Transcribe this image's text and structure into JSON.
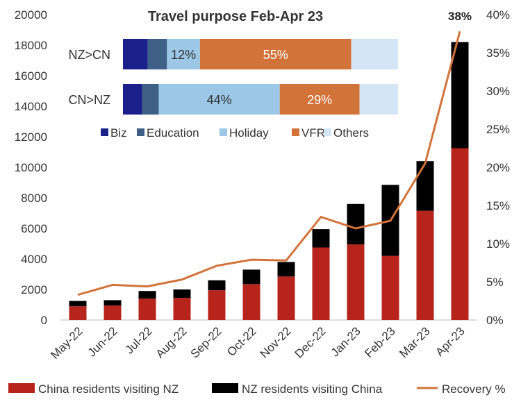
{
  "chart_data": [
    {
      "type": "bar",
      "stacked": true,
      "categories": [
        "May-22",
        "Jun-22",
        "Jul-22",
        "Aug-22",
        "Sep-22",
        "Oct-22",
        "Nov-22",
        "Dec-22",
        "Jan-23",
        "Feb-23",
        "Mar-23",
        "Apr-23"
      ],
      "series": [
        {
          "name": "China residents visiting NZ",
          "axis": "left",
          "color": "#b7241b",
          "values": [
            900,
            950,
            1400,
            1450,
            1950,
            2350,
            2850,
            4750,
            4950,
            4200,
            7150,
            11250
          ]
        },
        {
          "name": "NZ residents visiting China",
          "axis": "left",
          "color": "#000000",
          "values": [
            350,
            350,
            500,
            550,
            650,
            950,
            950,
            1200,
            2650,
            4650,
            3250,
            6950
          ]
        },
        {
          "name": "Recovery %",
          "type": "line",
          "axis": "right",
          "color": "#d2733a",
          "values": [
            3.3,
            4.6,
            4.4,
            5.3,
            7.1,
            7.9,
            7.8,
            13.5,
            12.0,
            13.0,
            20.5,
            37.8
          ]
        }
      ],
      "ylim_left": [
        0,
        20000
      ],
      "yticks_left": [
        "0",
        "2000",
        "4000",
        "6000",
        "8000",
        "10000",
        "12000",
        "14000",
        "16000",
        "18000",
        "20000"
      ],
      "ylim_right": [
        0,
        40
      ],
      "yticks_right": [
        "0%",
        "5%",
        "10%",
        "15%",
        "20%",
        "25%",
        "30%",
        "35%",
        "40%"
      ],
      "annotation": "38%",
      "legend_position": "bottom",
      "grid": false
    },
    {
      "type": "bar",
      "orientation": "horizontal",
      "stacked": true,
      "percent": true,
      "title": "Travel purpose Feb-Apr 23",
      "categories": [
        "NZ>CN",
        "CN>NZ"
      ],
      "series": [
        {
          "name": "Biz",
          "color": "#1a1f8a",
          "values": [
            9,
            7
          ],
          "labels": [
            "",
            ""
          ]
        },
        {
          "name": "Education",
          "color": "#3e5f86",
          "values": [
            7,
            6
          ],
          "labels": [
            "",
            ""
          ]
        },
        {
          "name": "Holiday",
          "color": "#9cc7e7",
          "values": [
            12,
            44
          ],
          "labels": [
            "12%",
            "44%"
          ]
        },
        {
          "name": "VFR",
          "color": "#d2733a",
          "values": [
            55,
            29
          ],
          "labels": [
            "55%",
            "29%"
          ]
        },
        {
          "name": "Others",
          "color": "#d4e6f5",
          "values": [
            17,
            14
          ],
          "labels": [
            "",
            ""
          ]
        }
      ],
      "legend_position": "bottom"
    }
  ]
}
